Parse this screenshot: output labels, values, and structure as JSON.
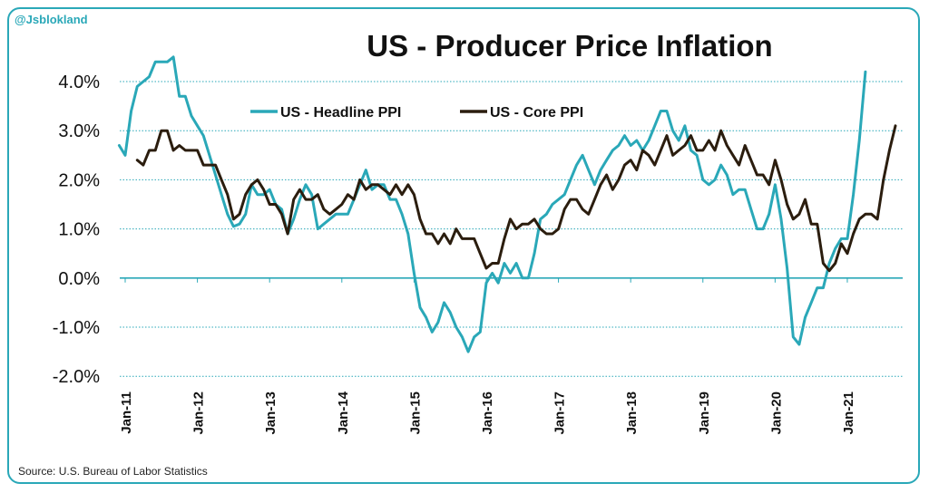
{
  "handle": "@Jsblokland",
  "source": "Source: U.S. Bureau of Labor Statistics",
  "chart_data": {
    "type": "line",
    "title": "US - Producer Price Inflation",
    "xlabel": "",
    "ylabel": "",
    "ylim": [
      -2.0,
      4.0
    ],
    "yticks": [
      "-2.0%",
      "-1.0%",
      "0.0%",
      "1.0%",
      "2.0%",
      "3.0%",
      "4.0%"
    ],
    "xticks": [
      "Jan-11",
      "Jan-12",
      "Jan-13",
      "Jan-14",
      "Jan-15",
      "Jan-16",
      "Jan-17",
      "Jan-18",
      "Jan-19",
      "Jan-20",
      "Jan-21"
    ],
    "grid": true,
    "legend_position": "top-left",
    "series": [
      {
        "name": "US - Headline PPI",
        "color": "#2aa8b8",
        "start": "2010-12",
        "values": [
          2.7,
          2.5,
          3.4,
          3.9,
          4.0,
          4.1,
          4.4,
          4.4,
          4.4,
          4.5,
          3.7,
          3.7,
          3.3,
          3.1,
          2.9,
          2.5,
          2.1,
          1.7,
          1.3,
          1.05,
          1.1,
          1.3,
          1.9,
          1.7,
          1.7,
          1.8,
          1.5,
          1.4,
          0.9,
          1.2,
          1.6,
          1.9,
          1.7,
          1.0,
          1.1,
          1.2,
          1.3,
          1.3,
          1.3,
          1.6,
          1.9,
          2.2,
          1.8,
          1.9,
          1.9,
          1.6,
          1.6,
          1.3,
          0.9,
          0.1,
          -0.6,
          -0.8,
          -1.1,
          -0.9,
          -0.5,
          -0.7,
          -1.0,
          -1.2,
          -1.5,
          -1.2,
          -1.1,
          -0.1,
          0.1,
          -0.1,
          0.3,
          0.1,
          0.3,
          0.0,
          0.0,
          0.5,
          1.2,
          1.3,
          1.5,
          1.6,
          1.7,
          2.0,
          2.3,
          2.5,
          2.2,
          1.9,
          2.2,
          2.4,
          2.6,
          2.7,
          2.9,
          2.7,
          2.8,
          2.6,
          2.8,
          3.1,
          3.4,
          3.4,
          3.0,
          2.8,
          3.1,
          2.6,
          2.5,
          2.0,
          1.9,
          2.0,
          2.3,
          2.1,
          1.7,
          1.8,
          1.8,
          1.4,
          1.0,
          1.0,
          1.3,
          1.9,
          1.2,
          0.2,
          -1.2,
          -1.35,
          -0.8,
          -0.5,
          -0.2,
          -0.2,
          0.3,
          0.6,
          0.8,
          0.8,
          1.7,
          2.8,
          4.2
        ]
      },
      {
        "name": "US - Core PPI",
        "color": "#2b1d0e",
        "start": "2011-03",
        "values": [
          2.4,
          2.3,
          2.6,
          2.6,
          3.0,
          3.0,
          2.6,
          2.7,
          2.6,
          2.6,
          2.6,
          2.3,
          2.3,
          2.3,
          2.0,
          1.7,
          1.2,
          1.3,
          1.7,
          1.9,
          2.0,
          1.8,
          1.5,
          1.5,
          1.3,
          0.9,
          1.6,
          1.8,
          1.6,
          1.6,
          1.7,
          1.4,
          1.3,
          1.4,
          1.5,
          1.7,
          1.6,
          2.0,
          1.8,
          1.9,
          1.9,
          1.8,
          1.7,
          1.9,
          1.7,
          1.9,
          1.7,
          1.2,
          0.9,
          0.9,
          0.7,
          0.9,
          0.7,
          1.0,
          0.8,
          0.8,
          0.8,
          0.5,
          0.2,
          0.3,
          0.3,
          0.8,
          1.2,
          1.0,
          1.1,
          1.1,
          1.2,
          1.0,
          0.9,
          0.9,
          1.0,
          1.4,
          1.6,
          1.6,
          1.4,
          1.3,
          1.6,
          1.9,
          2.1,
          1.8,
          2.0,
          2.3,
          2.4,
          2.2,
          2.6,
          2.5,
          2.3,
          2.6,
          2.9,
          2.5,
          2.6,
          2.7,
          2.9,
          2.6,
          2.6,
          2.8,
          2.6,
          3.0,
          2.7,
          2.5,
          2.3,
          2.7,
          2.4,
          2.1,
          2.1,
          1.9,
          2.4,
          2.0,
          1.5,
          1.2,
          1.3,
          1.6,
          1.1,
          1.1,
          0.3,
          0.15,
          0.3,
          0.7,
          0.5,
          0.9,
          1.2,
          1.3,
          1.3,
          1.2,
          2.0,
          2.6,
          3.1
        ]
      }
    ]
  }
}
